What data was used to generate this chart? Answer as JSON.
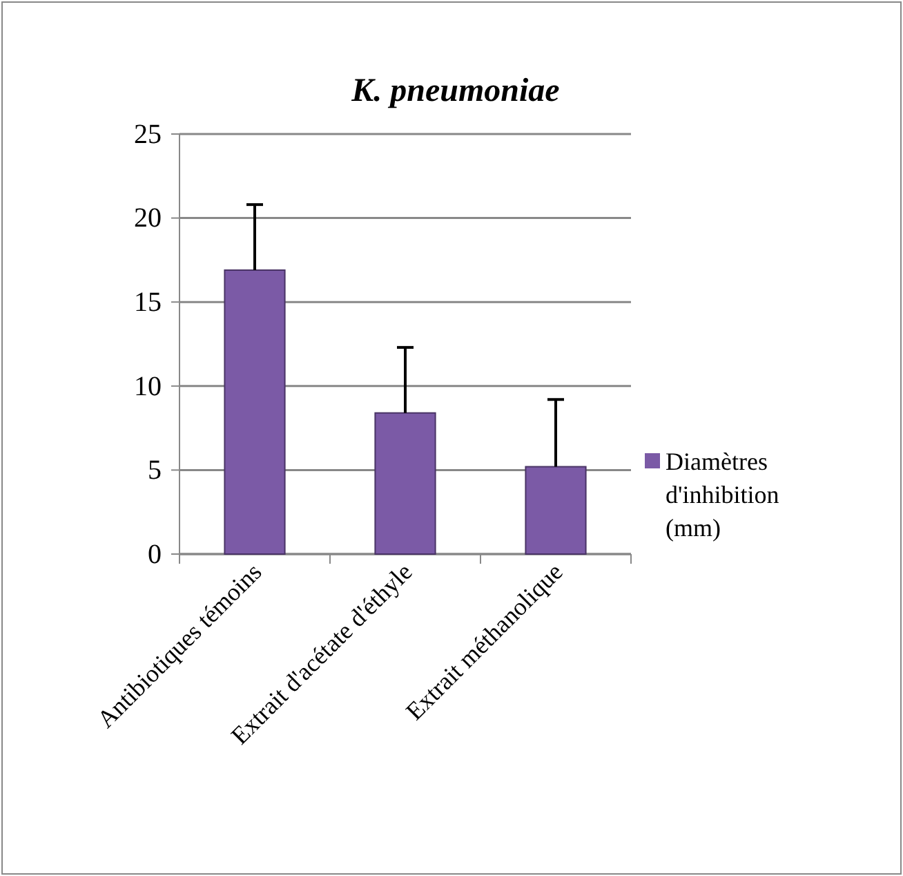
{
  "chart_data": {
    "type": "bar",
    "title": "K. pneumoniae",
    "categories": [
      "Antibiotiques témoins",
      "Extrait d'acétate d'éthyle",
      "Extrait méthanolique"
    ],
    "series": [
      {
        "name": "Diamètres d'inhibition (mm)",
        "color": "#7b5aa6",
        "values": [
          16.9,
          8.4,
          5.2
        ],
        "errors": [
          [
            16.9,
            20.8
          ],
          [
            8.4,
            12.3
          ],
          [
            5.2,
            9.2
          ]
        ]
      }
    ],
    "ylim": [
      0,
      25
    ],
    "yticks": [
      0,
      5,
      10,
      15,
      20,
      25
    ],
    "grid": "y",
    "legend": "right"
  }
}
